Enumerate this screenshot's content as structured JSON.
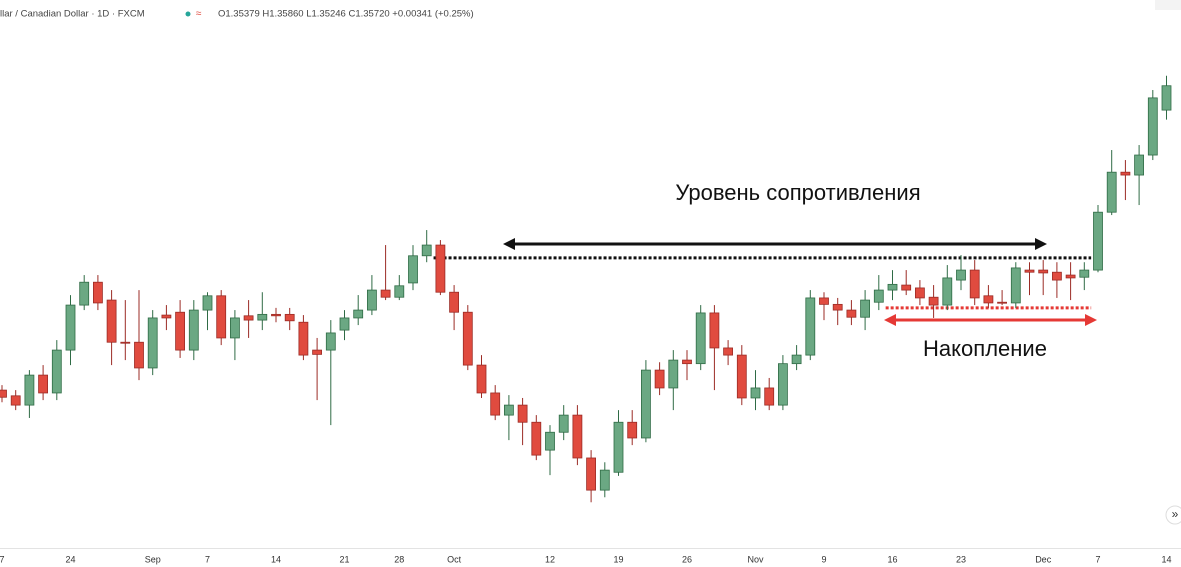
{
  "chart_data": {
    "type": "candlestick",
    "header": {
      "symbol": "llar / Canadian Dollar · 1D · FXCM",
      "ohlc": "O1.35379 H1.35860 L1.35246 C1.35720 +0.00341 (+0.25%)"
    },
    "annotations": [
      "Уровень сопротивления",
      "Накопление"
    ],
    "categories": [
      "7",
      null,
      null,
      null,
      null,
      "24",
      null,
      null,
      null,
      null,
      null,
      "Sep",
      null,
      null,
      null,
      "7",
      null,
      null,
      null,
      null,
      "14",
      null,
      null,
      null,
      null,
      "21",
      null,
      null,
      null,
      "28",
      null,
      null,
      null,
      "Oct",
      null,
      null,
      null,
      null,
      null,
      null,
      "12",
      null,
      null,
      null,
      null,
      "19",
      null,
      null,
      null,
      null,
      "26",
      null,
      null,
      null,
      null,
      "Nov",
      null,
      null,
      null,
      null,
      "9",
      null,
      null,
      null,
      null,
      "16",
      null,
      null,
      null,
      null,
      "23",
      null,
      null,
      null,
      null,
      null,
      "Dec",
      null,
      null,
      null,
      "7",
      null,
      null,
      null,
      null,
      "14"
    ],
    "open": [
      1.3146,
      1.3138,
      1.3125,
      1.3167,
      1.3142,
      1.3202,
      1.3265,
      1.3297,
      1.3272,
      1.3213,
      1.3213,
      1.3177,
      1.3251,
      1.3255,
      1.3202,
      1.3258,
      1.3278,
      1.3219,
      1.325,
      1.3244,
      1.3252,
      1.3252,
      1.3241,
      1.3202,
      1.3202,
      1.323,
      1.3247,
      1.3258,
      1.3286,
      1.3276,
      1.3296,
      1.3334,
      1.3349,
      1.3283,
      1.3255,
      1.3181,
      1.3142,
      1.3111,
      1.3125,
      1.3101,
      1.3062,
      1.3087,
      1.3111,
      1.3051,
      1.3006,
      1.3031,
      1.3101,
      1.3079,
      1.3174,
      1.3149,
      1.3188,
      1.3183,
      1.3254,
      1.3205,
      1.3195,
      1.3135,
      1.3149,
      1.3125,
      1.3183,
      1.3195,
      1.3275,
      1.3266,
      1.3258,
      1.3248,
      1.3269,
      1.3286,
      1.3293,
      1.3289,
      1.3276,
      1.3265,
      1.33,
      1.3314,
      1.3278,
      1.3269,
      1.3268,
      1.3314,
      1.3314,
      1.3311,
      1.3307,
      1.3304,
      1.3314,
      1.3395,
      1.3451,
      1.3447,
      1.3475,
      1.35379
    ],
    "high": [
      1.3153,
      1.3146,
      1.3174,
      1.3181,
      1.3216,
      1.3279,
      1.3307,
      1.3307,
      1.3286,
      1.3272,
      1.3286,
      1.3258,
      1.3265,
      1.3272,
      1.3272,
      1.3283,
      1.3286,
      1.3258,
      1.3272,
      1.3283,
      1.3261,
      1.3261,
      1.3251,
      1.3219,
      1.3244,
      1.3258,
      1.3279,
      1.3307,
      1.3349,
      1.3307,
      1.3349,
      1.337,
      1.3356,
      1.3293,
      1.3265,
      1.3195,
      1.3153,
      1.3139,
      1.3135,
      1.3111,
      1.3097,
      1.3125,
      1.3125,
      1.3062,
      1.3045,
      1.3118,
      1.3118,
      1.3188,
      1.3185,
      1.3202,
      1.3202,
      1.3265,
      1.3265,
      1.3216,
      1.3209,
      1.3174,
      1.3163,
      1.3195,
      1.3209,
      1.3286,
      1.3283,
      1.3275,
      1.3272,
      1.3286,
      1.3307,
      1.3314,
      1.3314,
      1.33,
      1.3293,
      1.3321,
      1.3335,
      1.3328,
      1.3293,
      1.3286,
      1.3325,
      1.3325,
      1.3328,
      1.3325,
      1.3325,
      1.3325,
      1.3405,
      1.3482,
      1.3468,
      1.3489,
      1.3566,
      1.3586
    ],
    "low": [
      1.3129,
      1.3118,
      1.3107,
      1.3132,
      1.3132,
      1.3181,
      1.3258,
      1.3258,
      1.3181,
      1.3188,
      1.316,
      1.3167,
      1.323,
      1.3191,
      1.3188,
      1.323,
      1.3209,
      1.3188,
      1.3219,
      1.323,
      1.3241,
      1.323,
      1.3188,
      1.3132,
      1.3097,
      1.3216,
      1.3237,
      1.3251,
      1.3272,
      1.3272,
      1.3286,
      1.3325,
      1.3279,
      1.323,
      1.3174,
      1.3135,
      1.3104,
      1.3076,
      1.3069,
      1.3048,
      1.3027,
      1.3076,
      1.3041,
      1.2989,
      1.2996,
      1.3026,
      1.3069,
      1.3073,
      1.3139,
      1.3118,
      1.316,
      1.3174,
      1.3146,
      1.3181,
      1.3125,
      1.3118,
      1.3118,
      1.3118,
      1.3174,
      1.3188,
      1.3244,
      1.3237,
      1.3237,
      1.323,
      1.3258,
      1.3272,
      1.3279,
      1.3265,
      1.3247,
      1.3258,
      1.3286,
      1.3265,
      1.3261,
      1.3265,
      1.3261,
      1.3279,
      1.3279,
      1.3275,
      1.3272,
      1.3286,
      1.3311,
      1.3391,
      1.3412,
      1.3405,
      1.3468,
      1.35246
    ],
    "close": [
      1.3136,
      1.3125,
      1.3167,
      1.3142,
      1.3202,
      1.3265,
      1.3297,
      1.3268,
      1.3213,
      1.3212,
      1.3177,
      1.3247,
      1.3247,
      1.3202,
      1.3258,
      1.3278,
      1.3219,
      1.3247,
      1.3244,
      1.3252,
      1.325,
      1.3243,
      1.3195,
      1.3196,
      1.3226,
      1.3247,
      1.3258,
      1.3286,
      1.3276,
      1.3292,
      1.3334,
      1.3349,
      1.3283,
      1.3255,
      1.3181,
      1.3142,
      1.3111,
      1.3125,
      1.3101,
      1.3055,
      1.3087,
      1.3111,
      1.3051,
      1.3006,
      1.3034,
      1.3101,
      1.3079,
      1.3174,
      1.3149,
      1.3188,
      1.3183,
      1.3254,
      1.3205,
      1.3195,
      1.3135,
      1.3149,
      1.3125,
      1.3183,
      1.3195,
      1.3275,
      1.3266,
      1.3258,
      1.3248,
      1.3272,
      1.3286,
      1.3294,
      1.3286,
      1.3275,
      1.3265,
      1.3303,
      1.3314,
      1.3275,
      1.3268,
      1.3268,
      1.3317,
      1.3311,
      1.331,
      1.33,
      1.3303,
      1.3314,
      1.3395,
      1.3451,
      1.3447,
      1.3475,
      1.3555,
      1.3572
    ],
    "up_color": "#6ba883",
    "down_color": "#e04b3f",
    "levels": [
      {
        "value": 1.3331,
        "color": "#111111",
        "from": 32,
        "to": 79
      },
      {
        "value": 1.3261,
        "color": "#e53935",
        "from": 65,
        "to": 79
      }
    ],
    "ylim": [
      1.2925,
      1.3692
    ]
  }
}
